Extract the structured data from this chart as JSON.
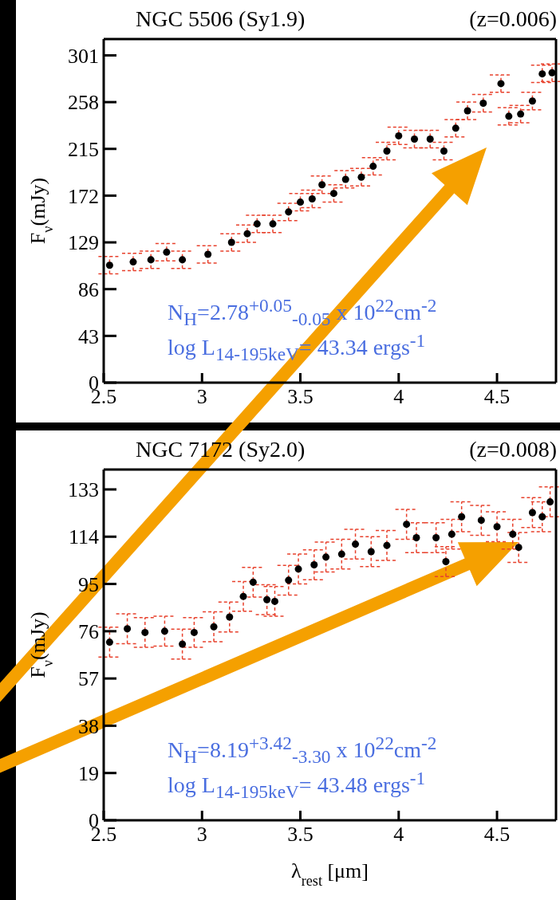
{
  "chart_data": [
    {
      "type": "scatter",
      "title": "NGC 5506 (Sy1.9)",
      "subtitle": "(z=0.006)",
      "ylabel": "F$_{ν}$(mJy)",
      "xlim": [
        2.5,
        4.8
      ],
      "xticks": [
        2.5,
        3,
        3.5,
        4,
        4.5
      ],
      "ylim": [
        0,
        316
      ],
      "yticks": [
        0,
        43,
        86,
        129,
        172,
        215,
        258,
        301
      ],
      "grid": false,
      "legend": false,
      "marker": "circle",
      "annotations": [
        "N$_{H}$=2.78$^{+0.05}$$_{-0.05}$ x 10$^{22}$cm$^{-2}$",
        "log L$_{14-195keV}$= 43.34 ergs$^{-1}$"
      ],
      "series": [
        {
          "color": "#000000",
          "x": [
            2.53,
            2.65,
            2.74,
            2.82,
            2.9,
            3.03,
            3.15,
            3.23,
            3.28,
            3.36,
            3.44,
            3.5,
            3.56,
            3.61,
            3.67,
            3.73,
            3.81,
            3.87,
            3.94,
            4.0,
            4.08,
            4.16,
            4.23,
            4.29,
            4.35,
            4.43,
            4.52,
            4.56,
            4.62,
            4.68,
            4.73,
            4.78
          ],
          "values": [
            108,
            111,
            113,
            120,
            113,
            118,
            129,
            137,
            146,
            146,
            157,
            166,
            169,
            182,
            174,
            187,
            189,
            199,
            213,
            227,
            224,
            224,
            213,
            234,
            250,
            257,
            275,
            245,
            247,
            259,
            284,
            285
          ],
          "errors": [
            8,
            8,
            8,
            8,
            8,
            8,
            8,
            8,
            8,
            8,
            8,
            8,
            8,
            8,
            8,
            8,
            8,
            8,
            8,
            8,
            8,
            8,
            8,
            8,
            8,
            8,
            8,
            8,
            8,
            8,
            8,
            8
          ]
        }
      ]
    },
    {
      "type": "scatter",
      "title": "NGC 7172 (Sy2.0)",
      "subtitle": "(z=0.008)",
      "xlabel": "λ$_{rest}$ [μm]",
      "ylabel": "F$_{ν}$(mJy)",
      "xlim": [
        2.5,
        4.8
      ],
      "xticks": [
        2.5,
        3,
        3.5,
        4,
        4.5
      ],
      "ylim": [
        0,
        141
      ],
      "yticks": [
        0,
        19,
        38,
        57,
        76,
        95,
        114,
        133
      ],
      "grid": false,
      "legend": false,
      "marker": "circle",
      "annotations": [
        "N$_{H}$=8.19$^{+3.42}$$_{-3.30}$ x 10$^{22}$cm$^{-2}$",
        "log L$_{14-195keV}$= 43.48 ergs$^{-1}$"
      ],
      "series": [
        {
          "color": "#000000",
          "x": [
            2.53,
            2.62,
            2.71,
            2.81,
            2.9,
            2.96,
            3.06,
            3.14,
            3.21,
            3.26,
            3.33,
            3.37,
            3.44,
            3.49,
            3.57,
            3.63,
            3.71,
            3.78,
            3.86,
            3.94,
            4.04,
            4.09,
            4.19,
            4.24,
            4.27,
            4.32,
            4.42,
            4.5,
            4.58,
            4.61,
            4.68,
            4.73,
            4.77
          ],
          "values": [
            71.6,
            77,
            75.5,
            76,
            70.8,
            75.5,
            77.8,
            81.7,
            90,
            95.7,
            88.7,
            88,
            96.5,
            101,
            102.7,
            105.8,
            107,
            111,
            108,
            110.5,
            119,
            113.6,
            113.6,
            104,
            115,
            122,
            120.6,
            118,
            115,
            109.7,
            123.7,
            122,
            128
          ],
          "errors": [
            6,
            6,
            6,
            6,
            6,
            6,
            6,
            6,
            6,
            6,
            6,
            6,
            6,
            6,
            6,
            6,
            6,
            6,
            6,
            6,
            6,
            6,
            6,
            6,
            6,
            6,
            6,
            6,
            6,
            6,
            6,
            6,
            6
          ]
        }
      ]
    }
  ]
}
